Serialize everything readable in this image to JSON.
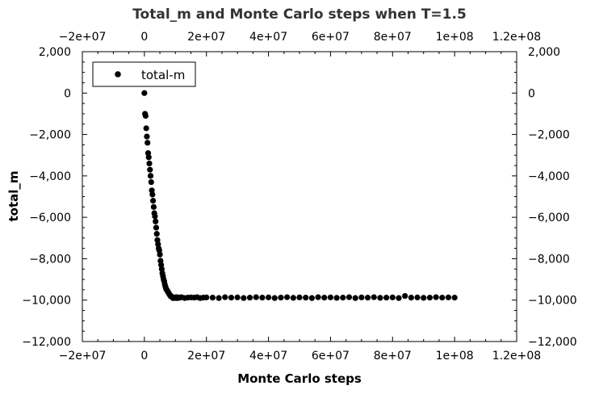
{
  "chart_data": {
    "type": "scatter",
    "title": "Total_m and Monte Carlo steps when T=1.5",
    "xlabel": "Monte Carlo steps",
    "ylabel": "total_m",
    "xlim": [
      -20000000,
      120000000
    ],
    "ylim": [
      -12000,
      2000
    ],
    "x_ticks": [
      -20000000,
      0,
      20000000,
      40000000,
      60000000,
      80000000,
      100000000,
      120000000
    ],
    "x_tick_labels": [
      "−2e+07",
      "0",
      "2e+07",
      "4e+07",
      "6e+07",
      "8e+07",
      "1e+08",
      "1.2e+08"
    ],
    "y_ticks": [
      2000,
      0,
      -2000,
      -4000,
      -6000,
      -8000,
      -10000,
      -12000
    ],
    "y_tick_labels": [
      "2,000",
      "0",
      "−2,000",
      "−4,000",
      "−6,000",
      "−8,000",
      "−10,000",
      "−12,000"
    ],
    "mirror_axes": true,
    "grid": false,
    "legend": {
      "position": "top-left",
      "entries": [
        "total-m"
      ]
    },
    "series": [
      {
        "name": "total-m",
        "color": "#000000",
        "marker": "circle",
        "x": [
          0,
          200000,
          400000,
          600000,
          800000,
          1000000,
          1200000,
          1400000,
          1600000,
          1800000,
          2000000,
          2200000,
          2400000,
          2600000,
          2800000,
          3000000,
          3200000,
          3400000,
          3600000,
          3800000,
          4000000,
          4200000,
          4400000,
          4600000,
          4800000,
          5000000,
          5200000,
          5400000,
          5600000,
          5800000,
          6000000,
          6200000,
          6400000,
          6600000,
          6800000,
          7000000,
          7200000,
          7400000,
          7600000,
          7800000,
          8000000,
          8200000,
          8400000,
          8600000,
          8800000,
          9000000,
          9200000,
          9400000,
          9600000,
          9800000,
          10000000,
          10200000,
          10400000,
          10600000,
          10800000,
          11000000,
          11500000,
          12000000,
          13000000,
          14000000,
          15000000,
          16000000,
          17000000,
          18000000,
          19000000,
          20000000,
          22000000,
          24000000,
          26000000,
          28000000,
          30000000,
          32000000,
          34000000,
          36000000,
          38000000,
          40000000,
          42000000,
          44000000,
          46000000,
          48000000,
          50000000,
          52000000,
          54000000,
          56000000,
          58000000,
          60000000,
          62000000,
          64000000,
          66000000,
          68000000,
          70000000,
          72000000,
          74000000,
          76000000,
          78000000,
          80000000,
          82000000,
          84000000,
          86000000,
          88000000,
          90000000,
          92000000,
          94000000,
          96000000,
          98000000,
          100000000
        ],
        "y": [
          0,
          -1000,
          -1100,
          -1700,
          -2100,
          -2400,
          -2900,
          -3100,
          -3400,
          -3700,
          -4000,
          -4300,
          -4700,
          -4900,
          -5200,
          -5500,
          -5800,
          -5950,
          -6200,
          -6500,
          -6800,
          -7100,
          -7300,
          -7500,
          -7600,
          -7800,
          -8100,
          -8300,
          -8500,
          -8700,
          -8850,
          -9000,
          -9100,
          -9250,
          -9350,
          -9450,
          -9500,
          -9550,
          -9600,
          -9650,
          -9700,
          -9750,
          -9800,
          -9800,
          -9850,
          -9850,
          -9900,
          -9900,
          -9880,
          -9880,
          -9870,
          -9900,
          -9860,
          -9880,
          -9900,
          -9870,
          -9880,
          -9860,
          -9900,
          -9880,
          -9870,
          -9880,
          -9860,
          -9900,
          -9880,
          -9870,
          -9880,
          -9900,
          -9860,
          -9880,
          -9870,
          -9900,
          -9880,
          -9860,
          -9880,
          -9870,
          -9900,
          -9880,
          -9860,
          -9890,
          -9870,
          -9880,
          -9900,
          -9860,
          -9880,
          -9870,
          -9890,
          -9880,
          -9860,
          -9900,
          -9870,
          -9880,
          -9860,
          -9890,
          -9880,
          -9870,
          -9900,
          -9800,
          -9880,
          -9870,
          -9890,
          -9880,
          -9860,
          -9880,
          -9870,
          -9880
        ]
      }
    ]
  }
}
